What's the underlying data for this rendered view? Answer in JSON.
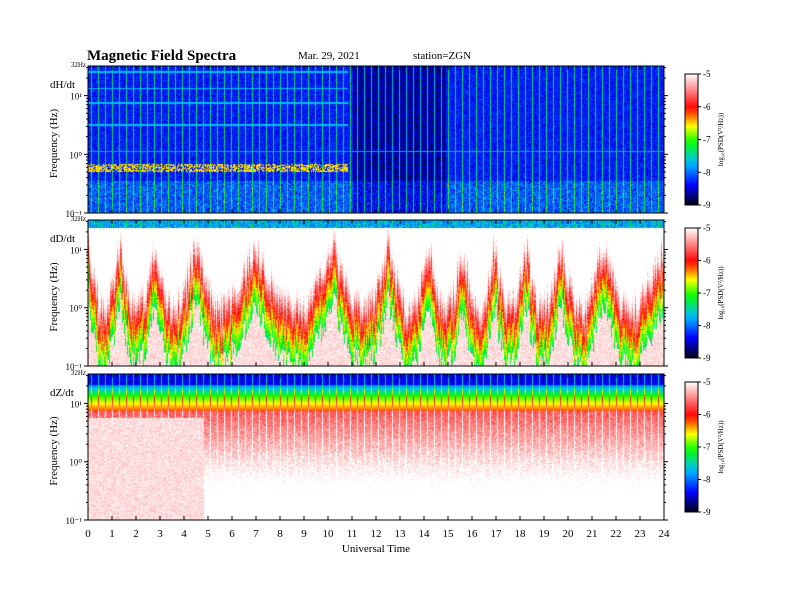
{
  "header": {
    "title": "Magnetic Field Spectra",
    "date": "Mar. 29, 2021",
    "station": "station=ZGN"
  },
  "chart_data": {
    "type": "heatmap",
    "xlabel": "Universal Time",
    "x_ticks": [
      "0",
      "1",
      "2",
      "3",
      "4",
      "5",
      "6",
      "7",
      "8",
      "9",
      "10",
      "11",
      "12",
      "13",
      "14",
      "15",
      "16",
      "17",
      "18",
      "19",
      "20",
      "21",
      "22",
      "23",
      "24"
    ],
    "xlim": [
      0,
      24
    ],
    "ylabel": "Frequency (Hz)",
    "y_scale": "log",
    "ylim": [
      0.1,
      32
    ],
    "y_tick_labels": [
      "10⁻¹",
      "10⁰",
      "10¹",
      "32Hz"
    ],
    "panels": [
      {
        "label": "dH/dt"
      },
      {
        "label": "dD/dt"
      },
      {
        "label": "dZ/dt"
      }
    ],
    "colorbar": {
      "label": "log₁₀(PSD(V²/Hz))",
      "range": [
        -9,
        -5
      ],
      "ticks": [
        "-5",
        "-6",
        "-7",
        "-8",
        "-9"
      ],
      "colors": [
        "#000010",
        "#0000ff",
        "#00c0ff",
        "#00ff00",
        "#ffff00",
        "#ff0000",
        "#ffffff"
      ]
    }
  }
}
